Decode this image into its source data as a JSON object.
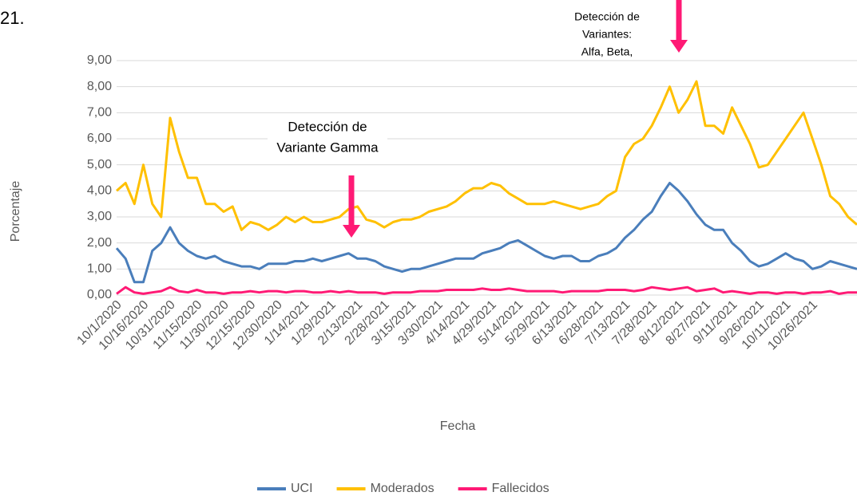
{
  "chart_data": {
    "type": "line",
    "page_label": "21.",
    "xlabel": "Fecha",
    "ylabel": "Porcentaje",
    "annotations": [
      {
        "lines": [
          "Detección de",
          "Variante Gamma"
        ],
        "color": "#ff1a75"
      },
      {
        "lines": [
          "Detección de",
          "Variantes:",
          "Alfa, Beta,"
        ],
        "color": "#ff1a75"
      }
    ],
    "categories": [
      "10/1/2020",
      null,
      null,
      "10/16/2020",
      null,
      null,
      "10/31/2020",
      null,
      null,
      "11/15/2020",
      null,
      null,
      "11/30/2020",
      null,
      null,
      "12/15/2020",
      null,
      null,
      "12/30/2020",
      null,
      null,
      "1/14/2021",
      null,
      null,
      "1/29/2021",
      null,
      null,
      "2/13/2021",
      null,
      null,
      "2/28/2021",
      null,
      null,
      "3/15/2021",
      null,
      null,
      "3/30/2021",
      null,
      null,
      "4/14/2021",
      null,
      null,
      "4/29/2021",
      null,
      null,
      "5/14/2021",
      null,
      null,
      "5/29/2021",
      null,
      null,
      "6/13/2021",
      null,
      null,
      "6/28/2021",
      null,
      null,
      "7/13/2021",
      null,
      null,
      "7/28/2021",
      null,
      null,
      "8/12/2021",
      null,
      null,
      "8/27/2021",
      null,
      null,
      "9/11/2021",
      null,
      null,
      "9/26/2021",
      null,
      null,
      "10/11/2021",
      null,
      null,
      "10/26/2021",
      null,
      null,
      null,
      null,
      null
    ],
    "series": [
      {
        "name": "UCI",
        "color": "#4a7ebb",
        "values": [
          1.8,
          1.4,
          0.5,
          0.5,
          1.7,
          2.0,
          2.6,
          2.0,
          1.7,
          1.5,
          1.4,
          1.5,
          1.3,
          1.2,
          1.1,
          1.1,
          1.0,
          1.2,
          1.2,
          1.2,
          1.3,
          1.3,
          1.4,
          1.3,
          1.4,
          1.5,
          1.6,
          1.4,
          1.4,
          1.3,
          1.1,
          1.0,
          0.9,
          1.0,
          1.0,
          1.1,
          1.2,
          1.3,
          1.4,
          1.4,
          1.4,
          1.6,
          1.7,
          1.8,
          2.0,
          2.1,
          1.9,
          1.7,
          1.5,
          1.4,
          1.5,
          1.5,
          1.3,
          1.3,
          1.5,
          1.6,
          1.8,
          2.2,
          2.5,
          2.9,
          3.2,
          3.8,
          4.3,
          4.0,
          3.6,
          3.1,
          2.7,
          2.5,
          2.5,
          2.0,
          1.7,
          1.3,
          1.1,
          1.2,
          1.4,
          1.6,
          1.4,
          1.3,
          1.0,
          1.1,
          1.3,
          1.2,
          1.1,
          1.0
        ]
      },
      {
        "name": "Moderados",
        "color": "#ffc000",
        "values": [
          4.0,
          4.3,
          3.5,
          5.0,
          3.5,
          3.0,
          6.8,
          5.5,
          4.5,
          4.5,
          3.5,
          3.5,
          3.2,
          3.4,
          2.5,
          2.8,
          2.7,
          2.5,
          2.7,
          3.0,
          2.8,
          3.0,
          2.8,
          2.8,
          2.9,
          3.0,
          3.3,
          3.4,
          2.9,
          2.8,
          2.6,
          2.8,
          2.9,
          2.9,
          3.0,
          3.2,
          3.3,
          3.4,
          3.6,
          3.9,
          4.1,
          4.1,
          4.3,
          4.2,
          3.9,
          3.7,
          3.5,
          3.5,
          3.5,
          3.6,
          3.5,
          3.4,
          3.3,
          3.4,
          3.5,
          3.8,
          4.0,
          5.3,
          5.8,
          6.0,
          6.5,
          7.2,
          8.0,
          7.0,
          7.5,
          8.2,
          6.5,
          6.5,
          6.2,
          7.2,
          6.5,
          5.8,
          4.9,
          5.0,
          5.5,
          6.0,
          6.5,
          7.0,
          6.0,
          5.0,
          3.8,
          3.5,
          3.0,
          2.7
        ]
      },
      {
        "name": "Fallecidos",
        "color": "#ff1a75",
        "values": [
          0.05,
          0.3,
          0.1,
          0.05,
          0.1,
          0.15,
          0.3,
          0.15,
          0.1,
          0.2,
          0.1,
          0.1,
          0.05,
          0.1,
          0.1,
          0.15,
          0.1,
          0.15,
          0.15,
          0.1,
          0.15,
          0.15,
          0.1,
          0.1,
          0.15,
          0.1,
          0.15,
          0.1,
          0.1,
          0.1,
          0.05,
          0.1,
          0.1,
          0.1,
          0.15,
          0.15,
          0.15,
          0.2,
          0.2,
          0.2,
          0.2,
          0.25,
          0.2,
          0.2,
          0.25,
          0.2,
          0.15,
          0.15,
          0.15,
          0.15,
          0.1,
          0.15,
          0.15,
          0.15,
          0.15,
          0.2,
          0.2,
          0.2,
          0.15,
          0.2,
          0.3,
          0.25,
          0.2,
          0.25,
          0.3,
          0.15,
          0.2,
          0.25,
          0.1,
          0.15,
          0.1,
          0.05,
          0.1,
          0.1,
          0.05,
          0.1,
          0.1,
          0.05,
          0.1,
          0.1,
          0.15,
          0.05,
          0.1,
          0.1
        ]
      }
    ],
    "ylim": [
      0,
      9
    ],
    "yticks": [
      {
        "value": 0,
        "label": "0,00"
      },
      {
        "value": 1,
        "label": "1,00"
      },
      {
        "value": 2,
        "label": "2,00"
      },
      {
        "value": 3,
        "label": "3,00"
      },
      {
        "value": 4,
        "label": "4,00"
      },
      {
        "value": 5,
        "label": "5,00"
      },
      {
        "value": 6,
        "label": "6,00"
      },
      {
        "value": 7,
        "label": "7,00"
      },
      {
        "value": 8,
        "label": "8,00"
      },
      {
        "value": 9,
        "label": "9,00"
      }
    ],
    "grid": true,
    "legend": "bottom"
  }
}
